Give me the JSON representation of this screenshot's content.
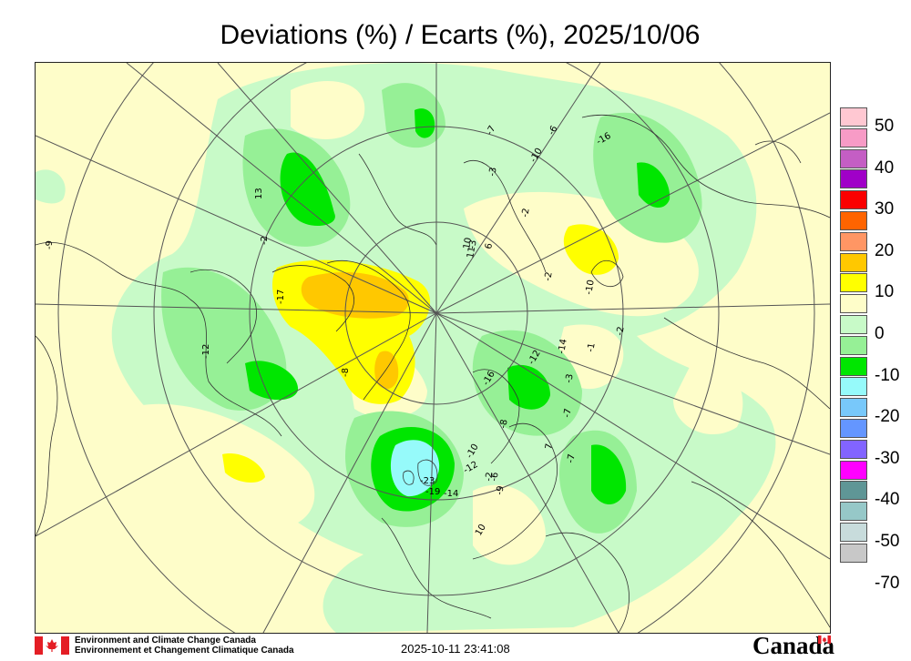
{
  "title": "Deviations (%) / Ecarts (%), 2025/10/06",
  "legend": {
    "items": [
      {
        "label": "50",
        "color": "#ffc8d2"
      },
      {
        "label": "",
        "color": "#f79bc6"
      },
      {
        "label": "40",
        "color": "#c45ec4"
      },
      {
        "label": "",
        "color": "#a000c8"
      },
      {
        "label": "30",
        "color": "#fa0000"
      },
      {
        "label": "",
        "color": "#ff6400"
      },
      {
        "label": "20",
        "color": "#ff9664"
      },
      {
        "label": "",
        "color": "#ffc800"
      },
      {
        "label": "10",
        "color": "#ffff00"
      },
      {
        "label": "",
        "color": "#fefdc9"
      },
      {
        "label": "0",
        "color": "#c8fac8"
      },
      {
        "label": "",
        "color": "#96f096"
      },
      {
        "label": "-10",
        "color": "#00e600"
      },
      {
        "label": "",
        "color": "#96fafa"
      },
      {
        "label": "-20",
        "color": "#78c8fa"
      },
      {
        "label": "",
        "color": "#6496ff"
      },
      {
        "label": "-30",
        "color": "#8264ff"
      },
      {
        "label": "",
        "color": "#ff00ff"
      },
      {
        "label": "-40",
        "color": "#5f9696"
      },
      {
        "label": "",
        "color": "#96c8c8"
      },
      {
        "label": "-50",
        "color": "#c8dcdc"
      },
      {
        "label": "",
        "color": "#c8c8c8"
      },
      {
        "label": "-70",
        "color": ""
      }
    ]
  },
  "stations": [
    "-9",
    "13",
    "-2",
    "-7",
    "-6",
    "-16",
    "-10",
    "-3",
    "-2",
    "6",
    "-10",
    "11",
    "-2",
    "10",
    "-2",
    "-1",
    "-14",
    "-12",
    "-3",
    "-16",
    "-7",
    "7",
    "-7",
    "-8",
    "-12",
    "-6",
    "-23",
    "-19",
    "-14",
    "-10",
    "-2",
    "-9",
    "10",
    "-12",
    "-8",
    "-17",
    "-3"
  ],
  "footer": {
    "org_en": "Environment and Climate Change Canada",
    "org_fr": "Environnement et Changement Climatique Canada",
    "timestamp": "2025-10-11 23:41:08",
    "wordmark": "Canada"
  },
  "colors": {
    "zero_band": "#fefdc9",
    "neg_band": "#c8fac8",
    "neg10_band": "#96f096",
    "neg10_core": "#00e600",
    "pos_band": "#ffff00",
    "pos_core": "#ffc800",
    "neg20_band": "#96fafa",
    "flag_red": "#e41e25"
  }
}
